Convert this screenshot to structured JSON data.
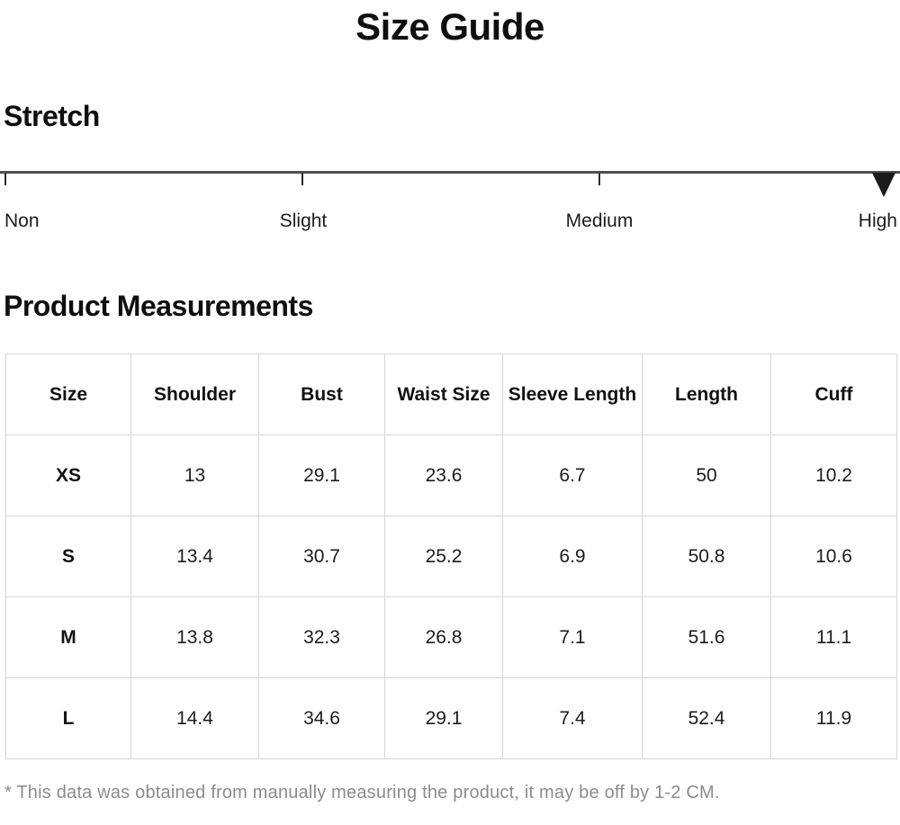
{
  "page": {
    "title": "Size Guide"
  },
  "stretch": {
    "heading": "Stretch",
    "levels": [
      "Non",
      "Slight",
      "Medium",
      "High"
    ],
    "selected_level": "High"
  },
  "measurements": {
    "heading": "Product Measurements",
    "columns": [
      "Size",
      "Shoulder",
      "Bust",
      "Waist Size",
      "Sleeve Length",
      "Length",
      "Cuff"
    ],
    "rows": [
      {
        "size": "XS",
        "values": [
          "13",
          "29.1",
          "23.6",
          "6.7",
          "50",
          "10.2"
        ]
      },
      {
        "size": "S",
        "values": [
          "13.4",
          "30.7",
          "25.2",
          "6.9",
          "50.8",
          "10.6"
        ]
      },
      {
        "size": "M",
        "values": [
          "13.8",
          "32.3",
          "26.8",
          "7.1",
          "51.6",
          "11.1"
        ]
      },
      {
        "size": "L",
        "values": [
          "14.4",
          "34.6",
          "29.1",
          "7.4",
          "52.4",
          "11.9"
        ]
      }
    ],
    "footnote": "* This data was obtained from manually measuring the product, it may be off by 1-2 CM."
  },
  "colors": {
    "text": "#111111",
    "table_border": "#d6d6d6",
    "scale_line": "#4f4f4f",
    "marker": "#1a1a1a",
    "footnote_text": "#8c8c8c"
  }
}
